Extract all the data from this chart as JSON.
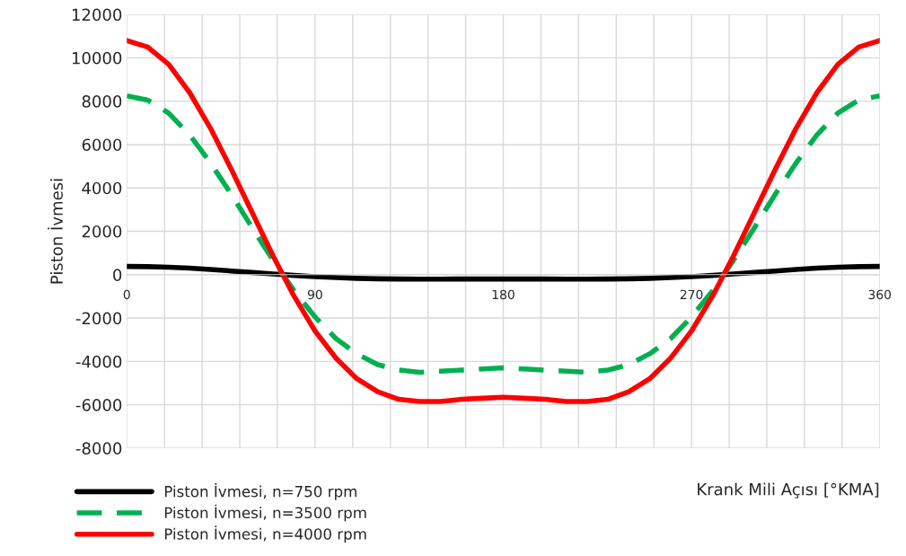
{
  "chart_data": {
    "type": "line",
    "xlabel": "Krank Mili Açısı [°KMA]",
    "ylabel": "Piston İvmesi",
    "x": [
      0,
      10,
      20,
      30,
      40,
      50,
      60,
      70,
      80,
      90,
      100,
      110,
      120,
      130,
      140,
      150,
      160,
      170,
      180,
      190,
      200,
      210,
      220,
      230,
      240,
      250,
      260,
      270,
      280,
      290,
      300,
      310,
      320,
      330,
      340,
      350,
      360
    ],
    "series": [
      {
        "name": "Piston İvmesi, n=750 rpm",
        "color": "#000000",
        "line_style": "solid",
        "values": [
          380,
          370,
          340,
          300,
          240,
          170,
          100,
          30,
          -35,
          -90,
          -135,
          -170,
          -190,
          -200,
          -205,
          -205,
          -200,
          -200,
          -200,
          -200,
          -200,
          -205,
          -205,
          -200,
          -190,
          -170,
          -135,
          -90,
          -35,
          30,
          100,
          170,
          240,
          300,
          340,
          370,
          380
        ]
      },
      {
        "name": "Piston İvmesi, n=3500 rpm",
        "color": "#00b050",
        "line_style": "dashed",
        "values": [
          8250,
          8050,
          7450,
          6450,
          5150,
          3700,
          2150,
          650,
          -750,
          -1950,
          -2950,
          -3650,
          -4150,
          -4400,
          -4500,
          -4450,
          -4400,
          -4350,
          -4300,
          -4350,
          -4400,
          -4450,
          -4500,
          -4400,
          -4150,
          -3650,
          -2950,
          -1950,
          -750,
          650,
          2150,
          3700,
          5150,
          6450,
          7450,
          8050,
          8250
        ]
      },
      {
        "name": "Piston İvmesi, n=4000 rpm",
        "color": "#ff0000",
        "line_style": "solid",
        "values": [
          10800,
          10500,
          9700,
          8400,
          6750,
          4850,
          2850,
          850,
          -1000,
          -2600,
          -3850,
          -4800,
          -5400,
          -5750,
          -5850,
          -5850,
          -5750,
          -5700,
          -5650,
          -5700,
          -5750,
          -5850,
          -5850,
          -5750,
          -5400,
          -4800,
          -3850,
          -2600,
          -1000,
          850,
          2850,
          4850,
          6750,
          8400,
          9700,
          10500,
          10800
        ]
      }
    ],
    "xlim": [
      0,
      360
    ],
    "ylim": [
      -8000,
      12000
    ],
    "xticks": [
      0,
      {
        "value": 18,
        "label": null
      },
      {
        "value": 36,
        "label": null
      },
      {
        "value": 54,
        "label": null
      },
      {
        "value": 72,
        "label": null
      },
      90,
      {
        "value": 108,
        "label": null
      },
      {
        "value": 126,
        "label": null
      },
      {
        "value": 144,
        "label": null
      },
      {
        "value": 162,
        "label": null
      },
      180,
      {
        "value": 198,
        "label": null
      },
      {
        "value": 216,
        "label": null
      },
      {
        "value": 234,
        "label": null
      },
      {
        "value": 252,
        "label": null
      },
      270,
      {
        "value": 288,
        "label": null
      },
      {
        "value": 306,
        "label": null
      },
      {
        "value": 324,
        "label": null
      },
      {
        "value": 342,
        "label": null
      },
      360
    ],
    "yticks": [
      -8000,
      -6000,
      -4000,
      -2000,
      0,
      2000,
      4000,
      6000,
      8000,
      10000,
      12000
    ],
    "grid": true,
    "legend": "bottom left",
    "marker": "none"
  }
}
